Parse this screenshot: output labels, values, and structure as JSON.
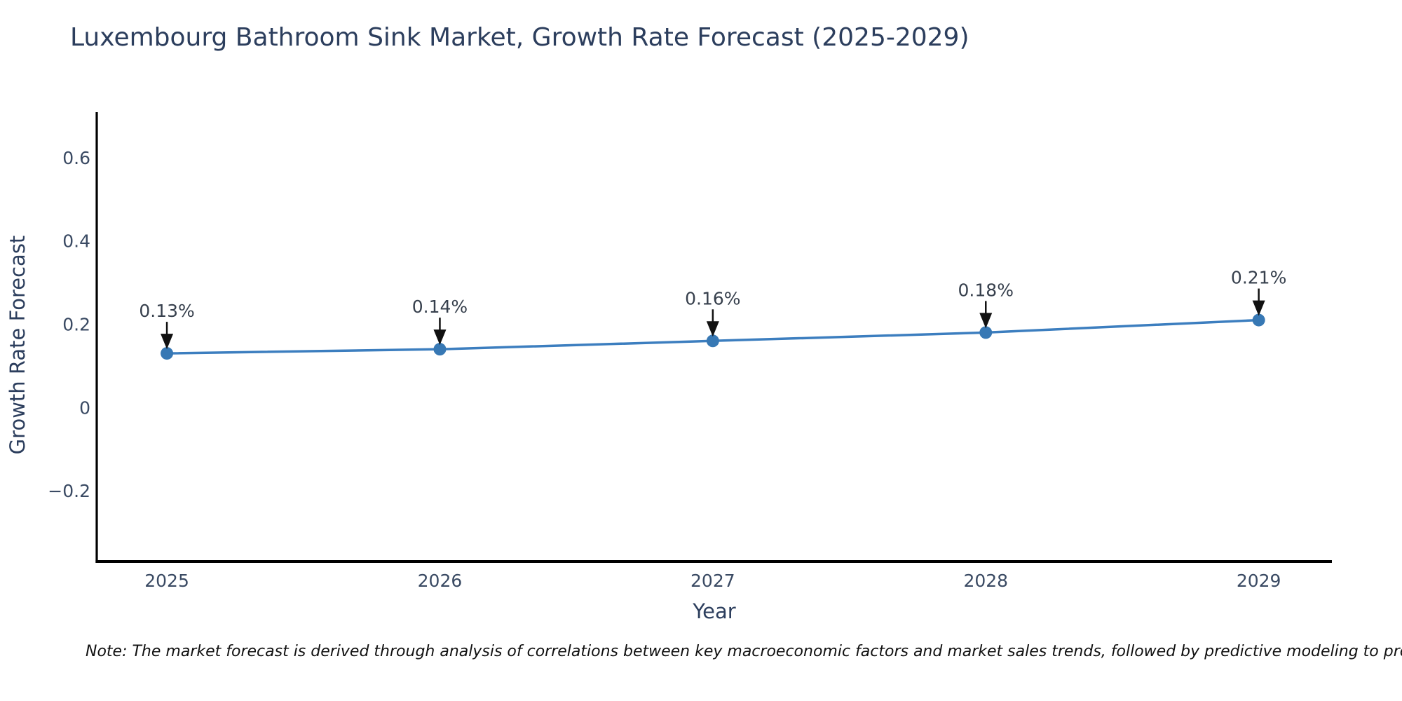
{
  "page": {
    "title": "Luxembourg Bathroom Sink Market, Growth Rate Forecast (2025-2029)"
  },
  "footnote": {
    "text": "Note: The market forecast is derived through analysis of correlations between key macroeconomic factors and market sales trends, followed by predictive modeling to project future sales"
  },
  "chart_data": {
    "type": "line",
    "title": "Luxembourg Bathroom Sink Market, Growth Rate Forecast (2025-2029)",
    "xlabel": "Year",
    "ylabel": "Growth Rate Forecast",
    "x": [
      2025,
      2026,
      2027,
      2028,
      2029
    ],
    "x_tick_labels": [
      "2025",
      "2026",
      "2027",
      "2028",
      "2029"
    ],
    "series": [
      {
        "values": [
          0.13,
          0.14,
          0.16,
          0.18,
          0.21
        ],
        "point_labels": [
          "0.13%",
          "0.14%",
          "0.16%",
          "0.18%",
          "0.21%"
        ]
      }
    ],
    "yticks": [
      -0.2,
      0,
      0.2,
      0.4,
      0.6
    ],
    "ytick_labels": [
      "−0.2",
      "0",
      "0.2",
      "0.4",
      "0.6"
    ],
    "xlim": [
      2024.743,
      2029.268
    ],
    "ylim": [
      -0.3697,
      0.7092
    ],
    "grid": false,
    "legend": "none",
    "annotation_style": "value-labels-with-down-arrows",
    "colors": {
      "line": "#3c7ebf",
      "marker": "#3778b4",
      "arrow": "#111111",
      "axis": "#000000",
      "title_text": "#2c3e5d",
      "tick_text": "#3a4a63",
      "annotation_text": "#37404d",
      "note_text": "#111111",
      "background": "#ffffff"
    }
  }
}
